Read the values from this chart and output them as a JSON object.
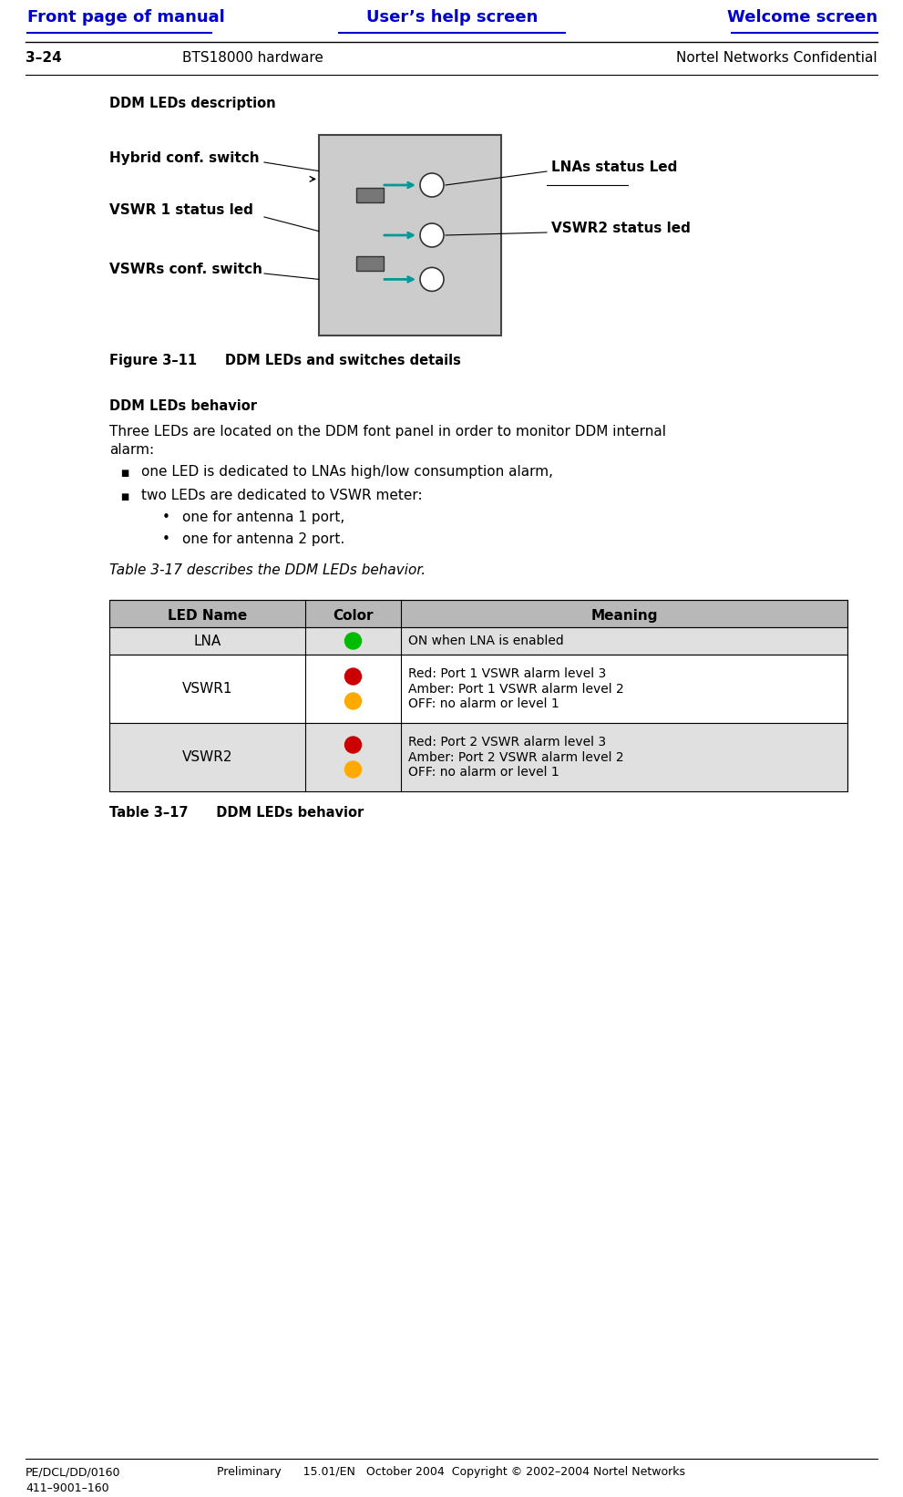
{
  "bg_color": "#ffffff",
  "header_links": [
    "Front page of manual",
    "User’s help screen",
    "Welcome screen"
  ],
  "header_link_color": "#0000cc",
  "page_id_left": "3–24",
  "page_id_center": "BTS18000 hardware",
  "page_id_right": "Nortel Networks Confidential",
  "section_title": "DDM LEDs description",
  "figure_caption": "Figure 3–11      DDM LEDs and switches details",
  "behavior_title": "DDM LEDs behavior",
  "body_text1": "Three LEDs are located on the DDM font panel in order to monitor DDM internal",
  "body_text2": "alarm:",
  "bullet1": "one LED is dedicated to LNAs high/low consumption alarm,",
  "bullet2": "two LEDs are dedicated to VSWR meter:",
  "sub_bullet1": "one for antenna 1 port,",
  "sub_bullet2": "one for antenna 2 port.",
  "table_ref_text": "Table 3-17 describes the DDM LEDs behavior.",
  "table_caption": "Table 3–17      DDM LEDs behavior",
  "table_headers": [
    "LED Name",
    "Color",
    "Meaning"
  ],
  "table_rows": [
    {
      "name": "LNA",
      "colors": [
        "#00bb00"
      ],
      "meaning": "ON when LNA is enabled"
    },
    {
      "name": "VSWR1",
      "colors": [
        "#cc0000",
        "#ffaa00"
      ],
      "meaning": "Red: Port 1 VSWR alarm level 3\nAmber: Port 1 VSWR alarm level 2\nOFF: no alarm or level 1"
    },
    {
      "name": "VSWR2",
      "colors": [
        "#cc0000",
        "#ffaa00"
      ],
      "meaning": "Red: Port 2 VSWR alarm level 3\nAmber: Port 2 VSWR alarm level 2\nOFF: no alarm or level 1"
    }
  ],
  "footer_left1": "PE/DCL/DD/0160",
  "footer_left2": "411–9001–160",
  "footer_center": "Preliminary      15.01/EN   October 2004  Copyright © 2002–2004 Nortel Networks",
  "diagram_labels": {
    "hybrid": "Hybrid conf. switch",
    "vswr1_led": "VSWR 1 status led",
    "vswr_conf": "VSWRs conf. switch",
    "lna_led": "LNAs status Led",
    "vswr2_led": "VSWR2 status led"
  }
}
